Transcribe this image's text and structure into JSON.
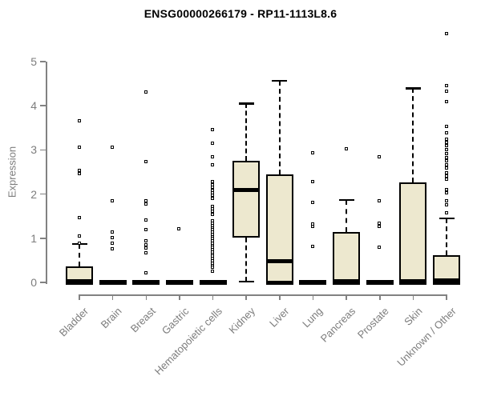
{
  "chart_data": {
    "type": "boxplot",
    "title": "ENSG00000266179 - RP11-1113L8.6",
    "ylabel": "Expression",
    "xlabel": "",
    "ylim": [
      0,
      5.8
    ],
    "yticks": [
      0,
      1,
      2,
      3,
      4,
      5
    ],
    "grid": false,
    "legend": false,
    "colors": {
      "box_fill": "#EDE8CF",
      "box_stroke": "#000000",
      "axis_line": "#828282",
      "axis_text": "#7d7d7d",
      "title_text": "#000000",
      "background": "#ffffff"
    },
    "categories": [
      "Bladder",
      "Brain",
      "Breast",
      "Gastric",
      "Hematopoietic cells",
      "Kidney",
      "Liver",
      "Lung",
      "Pancreas",
      "Prostate",
      "Skin",
      "Unknown / Other"
    ],
    "boxes": [
      {
        "name": "Bladder",
        "q1": 0,
        "median": 0.02,
        "q3": 0.37,
        "whisker_low": 0,
        "whisker_high": 0.87,
        "outliers": [
          3.65,
          3.06,
          2.52,
          2.46,
          1.45,
          1.05,
          0.88
        ]
      },
      {
        "name": "Brain",
        "q1": 0,
        "median": 0,
        "q3": 0,
        "whisker_low": 0,
        "whisker_high": 0,
        "outliers": [
          3.05,
          1.83,
          1.14,
          1.0,
          0.88,
          0.75
        ]
      },
      {
        "name": "Breast",
        "q1": 0,
        "median": 0,
        "q3": 0,
        "whisker_low": 0,
        "whisker_high": 0,
        "outliers": [
          4.3,
          2.72,
          1.84,
          1.76,
          1.41,
          1.18,
          0.93,
          0.85,
          0.77,
          0.66,
          0.2
        ]
      },
      {
        "name": "Gastric",
        "q1": 0,
        "median": 0,
        "q3": 0,
        "whisker_low": 0,
        "whisker_high": 0,
        "outliers": [
          1.2
        ]
      },
      {
        "name": "Hematopoietic cells",
        "q1": 0,
        "median": 0,
        "q3": 0,
        "whisker_low": 0,
        "whisker_high": 0,
        "outliers": [
          3.45,
          3.15,
          2.83,
          2.66,
          2.27,
          2.2,
          2.14,
          2.08,
          2.02,
          1.96,
          1.9,
          1.72,
          1.66,
          1.6,
          1.53,
          1.38,
          1.33,
          1.28,
          1.23,
          1.18,
          1.13,
          1.08,
          1.03,
          0.98,
          0.93,
          0.88,
          0.83,
          0.78,
          0.73,
          0.68,
          0.63,
          0.58,
          0.53,
          0.48,
          0.43,
          0.38,
          0.33,
          0.24
        ]
      },
      {
        "name": "Kidney",
        "q1": 1.02,
        "median": 2.1,
        "q3": 2.75,
        "whisker_low": 0.02,
        "whisker_high": 4.05,
        "outliers": []
      },
      {
        "name": "Liver",
        "q1": 0,
        "median": 0.48,
        "q3": 2.45,
        "whisker_low": 0,
        "whisker_high": 4.57,
        "outliers": []
      },
      {
        "name": "Lung",
        "q1": 0,
        "median": 0,
        "q3": 0,
        "whisker_low": 0,
        "whisker_high": 0,
        "outliers": [
          2.92,
          2.28,
          1.81,
          1.31,
          1.26,
          0.81
        ]
      },
      {
        "name": "Pancreas",
        "q1": 0,
        "median": 0.03,
        "q3": 1.15,
        "whisker_low": 0,
        "whisker_high": 1.87,
        "outliers": [
          3.02
        ]
      },
      {
        "name": "Prostate",
        "q1": 0,
        "median": 0,
        "q3": 0,
        "whisker_low": 0,
        "whisker_high": 0,
        "outliers": [
          2.84,
          1.83,
          1.33,
          1.26,
          0.78
        ]
      },
      {
        "name": "Skin",
        "q1": 0,
        "median": 0.03,
        "q3": 2.26,
        "whisker_low": 0,
        "whisker_high": 4.4,
        "outliers": []
      },
      {
        "name": "Unknown / Other",
        "q1": 0,
        "median": 0.04,
        "q3": 0.62,
        "whisker_low": 0,
        "whisker_high": 1.45,
        "outliers": [
          5.62,
          4.45,
          4.32,
          4.08,
          3.52,
          3.38,
          3.24,
          3.16,
          3.08,
          3.0,
          2.9,
          2.82,
          2.74,
          2.66,
          2.58,
          2.48,
          2.4,
          2.32,
          2.1,
          2.02,
          1.84,
          1.75,
          1.56
        ]
      }
    ]
  }
}
